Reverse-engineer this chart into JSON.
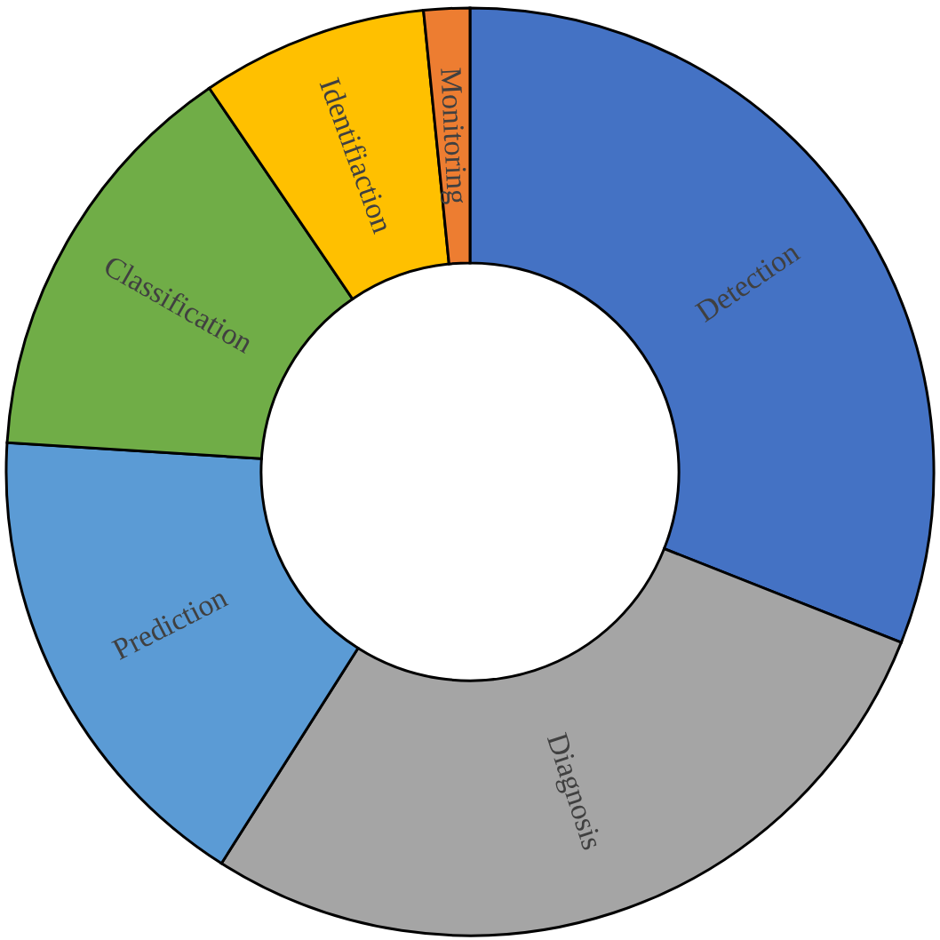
{
  "chart_data": {
    "type": "donut",
    "categories": [
      "Detection",
      "Diagnosis",
      "Prediction",
      "Classification",
      "Identifiaction",
      "Monitoring"
    ],
    "values": [
      31,
      28,
      17,
      14.5,
      7.9,
      1.6
    ],
    "colors": [
      "#4472c4",
      "#a5a5a5",
      "#5b9bd5",
      "#70ad47",
      "#ffc000",
      "#ed7d31"
    ],
    "legend": false
  }
}
